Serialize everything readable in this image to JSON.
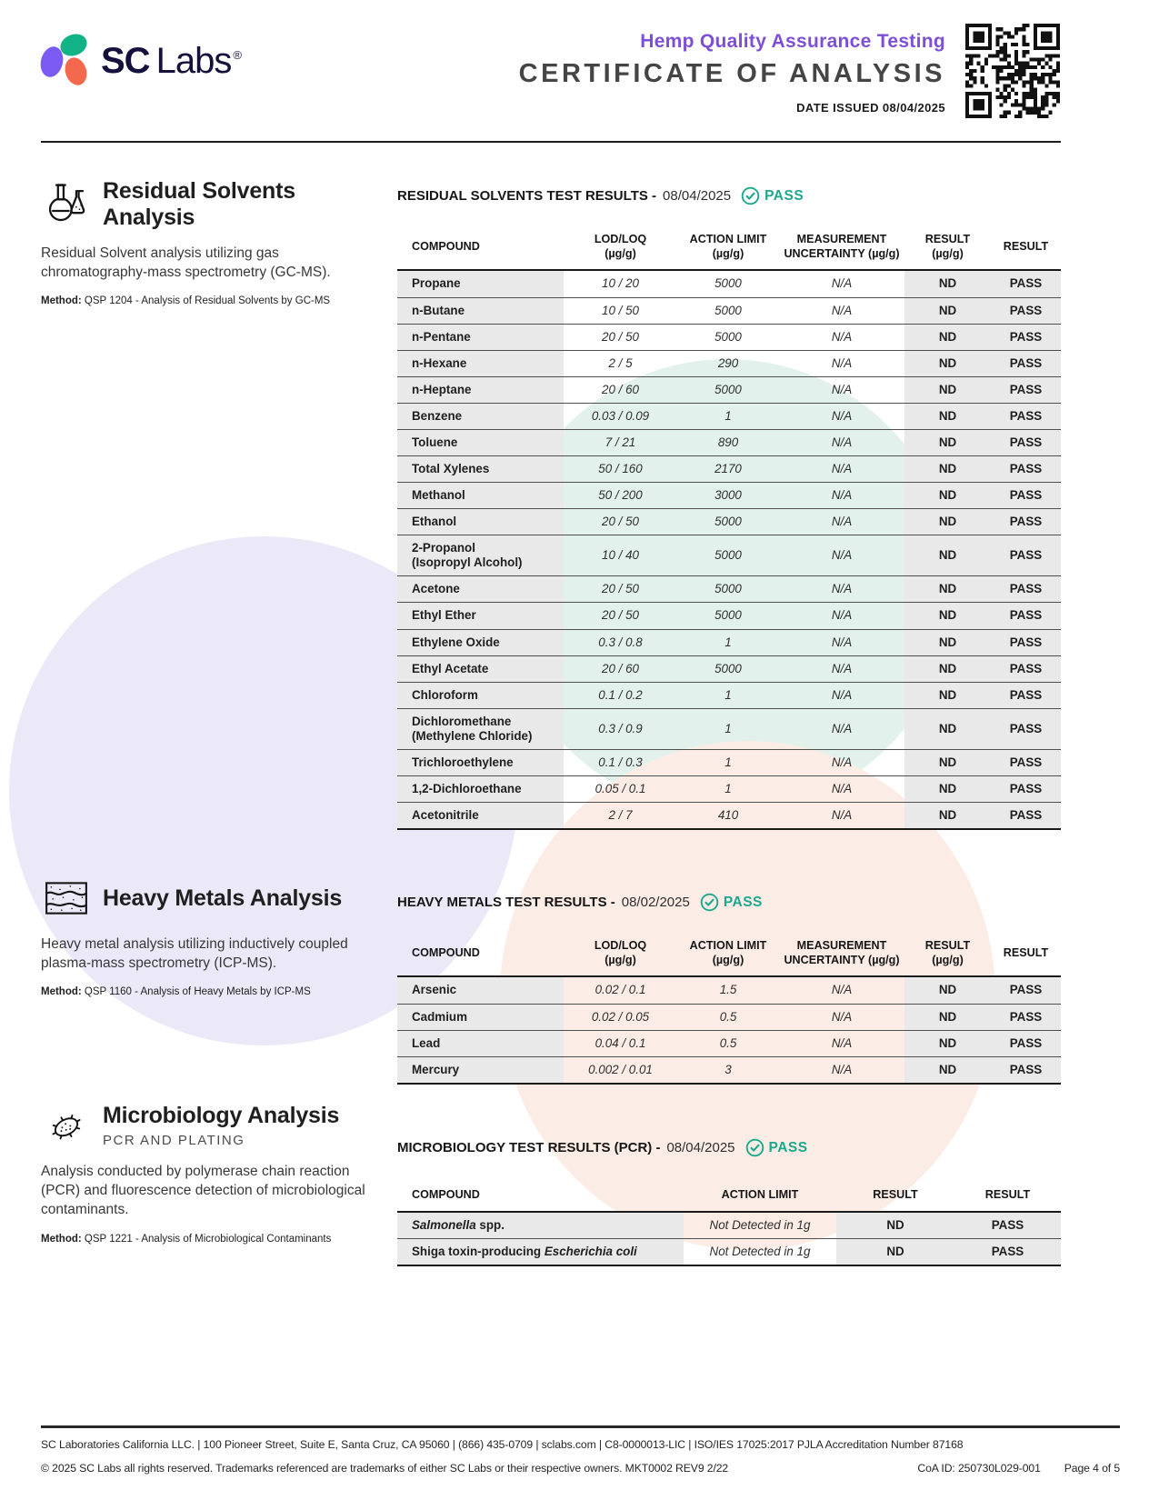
{
  "header": {
    "brand_sc": "SC",
    "brand_labs": "Labs",
    "brand_reg": "®",
    "subtitle": "Hemp Quality Assurance Testing",
    "title": "CERTIFICATE OF ANALYSIS",
    "date_issued": "DATE ISSUED 08/04/2025"
  },
  "colors": {
    "accent_purple": "#7c4fd6",
    "pass_teal": "#1ba88c",
    "logo_navy": "#14123c",
    "logo_purple": "#7b5bf3",
    "logo_green": "#12b487",
    "logo_coral": "#f4694e",
    "table_gray": "#e9e9e9"
  },
  "solvents": {
    "section_title": "Residual Solvents Analysis",
    "description": "Residual Solvent analysis utilizing gas chromatography-mass spectrometry (GC-MS).",
    "method_label": "Method:",
    "method": "QSP 1204 - Analysis of Residual Solvents by GC-MS",
    "results_title": "RESIDUAL SOLVENTS TEST RESULTS -",
    "results_date": "08/04/2025",
    "results_status": "PASS",
    "columns": [
      {
        "l1": "COMPOUND",
        "l2": ""
      },
      {
        "l1": "LOD/LOQ",
        "l2": "(µg/g)"
      },
      {
        "l1": "ACTION LIMIT",
        "l2": "(µg/g)"
      },
      {
        "l1": "MEASUREMENT",
        "l2": "UNCERTAINTY (µg/g)"
      },
      {
        "l1": "RESULT",
        "l2": "(µg/g)"
      },
      {
        "l1": "RESULT",
        "l2": ""
      }
    ],
    "rows": [
      {
        "compound": "Propane",
        "compound2": "",
        "lod_loq": "10 / 20",
        "action_limit": "5000",
        "uncertainty": "N/A",
        "result": "ND",
        "status": "PASS"
      },
      {
        "compound": "n-Butane",
        "compound2": "",
        "lod_loq": "10 / 50",
        "action_limit": "5000",
        "uncertainty": "N/A",
        "result": "ND",
        "status": "PASS"
      },
      {
        "compound": "n-Pentane",
        "compound2": "",
        "lod_loq": "20 / 50",
        "action_limit": "5000",
        "uncertainty": "N/A",
        "result": "ND",
        "status": "PASS"
      },
      {
        "compound": "n-Hexane",
        "compound2": "",
        "lod_loq": "2 / 5",
        "action_limit": "290",
        "uncertainty": "N/A",
        "result": "ND",
        "status": "PASS"
      },
      {
        "compound": "n-Heptane",
        "compound2": "",
        "lod_loq": "20 / 60",
        "action_limit": "5000",
        "uncertainty": "N/A",
        "result": "ND",
        "status": "PASS"
      },
      {
        "compound": "Benzene",
        "compound2": "",
        "lod_loq": "0.03 / 0.09",
        "action_limit": "1",
        "uncertainty": "N/A",
        "result": "ND",
        "status": "PASS"
      },
      {
        "compound": "Toluene",
        "compound2": "",
        "lod_loq": "7 / 21",
        "action_limit": "890",
        "uncertainty": "N/A",
        "result": "ND",
        "status": "PASS"
      },
      {
        "compound": "Total Xylenes",
        "compound2": "",
        "lod_loq": "50 / 160",
        "action_limit": "2170",
        "uncertainty": "N/A",
        "result": "ND",
        "status": "PASS"
      },
      {
        "compound": "Methanol",
        "compound2": "",
        "lod_loq": "50 / 200",
        "action_limit": "3000",
        "uncertainty": "N/A",
        "result": "ND",
        "status": "PASS"
      },
      {
        "compound": "Ethanol",
        "compound2": "",
        "lod_loq": "20 / 50",
        "action_limit": "5000",
        "uncertainty": "N/A",
        "result": "ND",
        "status": "PASS"
      },
      {
        "compound": "2-Propanol",
        "compound2": "(Isopropyl Alcohol)",
        "lod_loq": "10 / 40",
        "action_limit": "5000",
        "uncertainty": "N/A",
        "result": "ND",
        "status": "PASS"
      },
      {
        "compound": "Acetone",
        "compound2": "",
        "lod_loq": "20 / 50",
        "action_limit": "5000",
        "uncertainty": "N/A",
        "result": "ND",
        "status": "PASS"
      },
      {
        "compound": "Ethyl Ether",
        "compound2": "",
        "lod_loq": "20 / 50",
        "action_limit": "5000",
        "uncertainty": "N/A",
        "result": "ND",
        "status": "PASS"
      },
      {
        "compound": "Ethylene Oxide",
        "compound2": "",
        "lod_loq": "0.3 / 0.8",
        "action_limit": "1",
        "uncertainty": "N/A",
        "result": "ND",
        "status": "PASS"
      },
      {
        "compound": "Ethyl Acetate",
        "compound2": "",
        "lod_loq": "20 / 60",
        "action_limit": "5000",
        "uncertainty": "N/A",
        "result": "ND",
        "status": "PASS"
      },
      {
        "compound": "Chloroform",
        "compound2": "",
        "lod_loq": "0.1 / 0.2",
        "action_limit": "1",
        "uncertainty": "N/A",
        "result": "ND",
        "status": "PASS"
      },
      {
        "compound": "Dichloromethane",
        "compound2": "(Methylene Chloride)",
        "lod_loq": "0.3 / 0.9",
        "action_limit": "1",
        "uncertainty": "N/A",
        "result": "ND",
        "status": "PASS"
      },
      {
        "compound": "Trichloroethylene",
        "compound2": "",
        "lod_loq": "0.1 / 0.3",
        "action_limit": "1",
        "uncertainty": "N/A",
        "result": "ND",
        "status": "PASS"
      },
      {
        "compound": "1,2-Dichloroethane",
        "compound2": "",
        "lod_loq": "0.05 / 0.1",
        "action_limit": "1",
        "uncertainty": "N/A",
        "result": "ND",
        "status": "PASS"
      },
      {
        "compound": "Acetonitrile",
        "compound2": "",
        "lod_loq": "2 / 7",
        "action_limit": "410",
        "uncertainty": "N/A",
        "result": "ND",
        "status": "PASS"
      }
    ]
  },
  "metals": {
    "section_title": "Heavy Metals Analysis",
    "description": "Heavy metal analysis utilizing inductively coupled plasma-mass spectrometry (ICP-MS).",
    "method_label": "Method:",
    "method": "QSP 1160 - Analysis of Heavy Metals by ICP-MS",
    "results_title": "HEAVY METALS TEST RESULTS -",
    "results_date": "08/02/2025",
    "results_status": "PASS",
    "columns": [
      {
        "l1": "COMPOUND",
        "l2": ""
      },
      {
        "l1": "LOD/LOQ",
        "l2": "(µg/g)"
      },
      {
        "l1": "ACTION LIMIT",
        "l2": "(µg/g)"
      },
      {
        "l1": "MEASUREMENT",
        "l2": "UNCERTAINTY (µg/g)"
      },
      {
        "l1": "RESULT",
        "l2": "(µg/g)"
      },
      {
        "l1": "RESULT",
        "l2": ""
      }
    ],
    "rows": [
      {
        "compound": "Arsenic",
        "compound2": "",
        "lod_loq": "0.02 / 0.1",
        "action_limit": "1.5",
        "uncertainty": "N/A",
        "result": "ND",
        "status": "PASS"
      },
      {
        "compound": "Cadmium",
        "compound2": "",
        "lod_loq": "0.02 / 0.05",
        "action_limit": "0.5",
        "uncertainty": "N/A",
        "result": "ND",
        "status": "PASS"
      },
      {
        "compound": "Lead",
        "compound2": "",
        "lod_loq": "0.04 / 0.1",
        "action_limit": "0.5",
        "uncertainty": "N/A",
        "result": "ND",
        "status": "PASS"
      },
      {
        "compound": "Mercury",
        "compound2": "",
        "lod_loq": "0.002 / 0.01",
        "action_limit": "3",
        "uncertainty": "N/A",
        "result": "ND",
        "status": "PASS"
      }
    ]
  },
  "micro": {
    "section_title": "Microbiology Analysis",
    "section_subtitle": "PCR AND PLATING",
    "description": "Analysis conducted by polymerase chain reaction (PCR) and fluorescence detection of microbiological contaminants.",
    "method_label": "Method:",
    "method": "QSP 1221 - Analysis of Microbiological Contaminants",
    "results_title": "MICROBIOLOGY TEST RESULTS (PCR) -",
    "results_date": "08/04/2025",
    "results_status": "PASS",
    "columns": [
      {
        "l1": "COMPOUND"
      },
      {
        "l1": "ACTION LIMIT"
      },
      {
        "l1": "RESULT"
      },
      {
        "l1": "RESULT"
      }
    ],
    "rows": [
      {
        "name_pre": "",
        "name_italic": "Salmonella",
        "name_post": " spp.",
        "action_limit": "Not Detected in 1g",
        "result": "ND",
        "status": "PASS"
      },
      {
        "name_pre": "Shiga toxin-producing ",
        "name_italic": "Escherichia coli",
        "name_post": "",
        "action_limit": "Not Detected in 1g",
        "result": "ND",
        "status": "PASS"
      }
    ]
  },
  "footer": {
    "line1": "SC Laboratories California LLC. | 100 Pioneer Street, Suite E, Santa Cruz, CA 95060 | (866) 435-0709 | sclabs.com | C8-0000013-LIC | ISO/IES 17025:2017 PJLA Accreditation Number 87168",
    "line2_left": "© 2025 SC Labs all rights reserved. Trademarks referenced are trademarks of either SC Labs or their respective owners. MKT0002 REV9 2/22",
    "coa_id": "CoA ID: 250730L029-001",
    "page": "Page 4 of 5"
  }
}
